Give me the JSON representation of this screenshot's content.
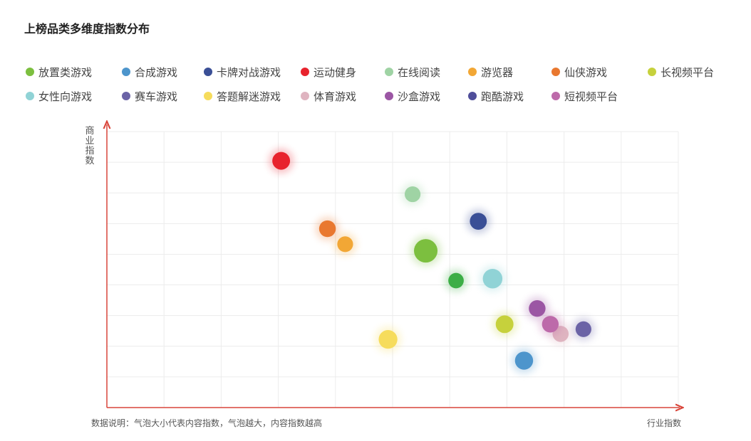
{
  "chart_data": {
    "type": "scatter",
    "title": "上榜品类多维度指数分布",
    "xlabel": "行业指数",
    "ylabel": "商业指数",
    "note": "数据说明：气泡大小代表内容指数，气泡越大，内容指数越高",
    "xlim": [
      0,
      100
    ],
    "ylim": [
      0,
      100
    ],
    "grid": true,
    "legend_position": "top",
    "series": [
      {
        "name": "放置类游戏",
        "color": "#7cbf3f",
        "points": [
          {
            "x": 55.8,
            "y": 56.8,
            "size": 100
          }
        ]
      },
      {
        "name": "合成游戏",
        "color": "#4d95cc",
        "points": [
          {
            "x": 73.0,
            "y": 17.0,
            "size": 45
          }
        ]
      },
      {
        "name": "卡牌对战游戏",
        "color": "#3a4f96",
        "points": [
          {
            "x": 65.0,
            "y": 67.5,
            "size": 36
          }
        ]
      },
      {
        "name": "运动健身",
        "color": "#e8232d",
        "points": [
          {
            "x": 30.5,
            "y": 89.4,
            "size": 42
          }
        ]
      },
      {
        "name": "在线阅读",
        "color": "#9fd3a4",
        "points": [
          {
            "x": 53.5,
            "y": 77.3,
            "size": 28
          }
        ]
      },
      {
        "name": "游览器",
        "color": "#f2a735",
        "points": [
          {
            "x": 41.7,
            "y": 59.2,
            "size": 28
          }
        ]
      },
      {
        "name": "仙侠游戏",
        "color": "#e9782f",
        "points": [
          {
            "x": 38.6,
            "y": 64.8,
            "size": 34
          }
        ]
      },
      {
        "name": "长视频平台",
        "color": "#c6d13c",
        "points": [
          {
            "x": 69.6,
            "y": 30.2,
            "size": 42
          }
        ]
      },
      {
        "name": "女性向游戏",
        "color": "#90d3d6",
        "points": [
          {
            "x": 67.5,
            "y": 46.7,
            "size": 58
          }
        ]
      },
      {
        "name": "赛车游戏",
        "color": "#6b63a6",
        "points": [
          {
            "x": 83.4,
            "y": 28.4,
            "size": 28
          }
        ]
      },
      {
        "name": "答题解迷游戏",
        "color": "#f6dc5c",
        "points": [
          {
            "x": 49.2,
            "y": 24.7,
            "size": 50
          }
        ]
      },
      {
        "name": "体育游戏",
        "color": "#dfb4c0",
        "points": [
          {
            "x": 79.4,
            "y": 26.7,
            "size": 30
          }
        ]
      },
      {
        "name": "沙盒游戏",
        "color": "#9b56a4",
        "points": [
          {
            "x": 75.3,
            "y": 35.9,
            "size": 34
          }
        ]
      },
      {
        "name": "跑酷游戏",
        "color": "#4f4e9a",
        "points": [
          {
            "x": 61.1,
            "y": 46.0,
            "size": 26
          }
        ]
      },
      {
        "name": "短视频平台",
        "color": "#bd6aaa",
        "points": [
          {
            "x": 77.6,
            "y": 30.2,
            "size": 34
          }
        ]
      }
    ]
  },
  "point_color_overrides": {
    "跑酷游戏": "#3cae46"
  }
}
